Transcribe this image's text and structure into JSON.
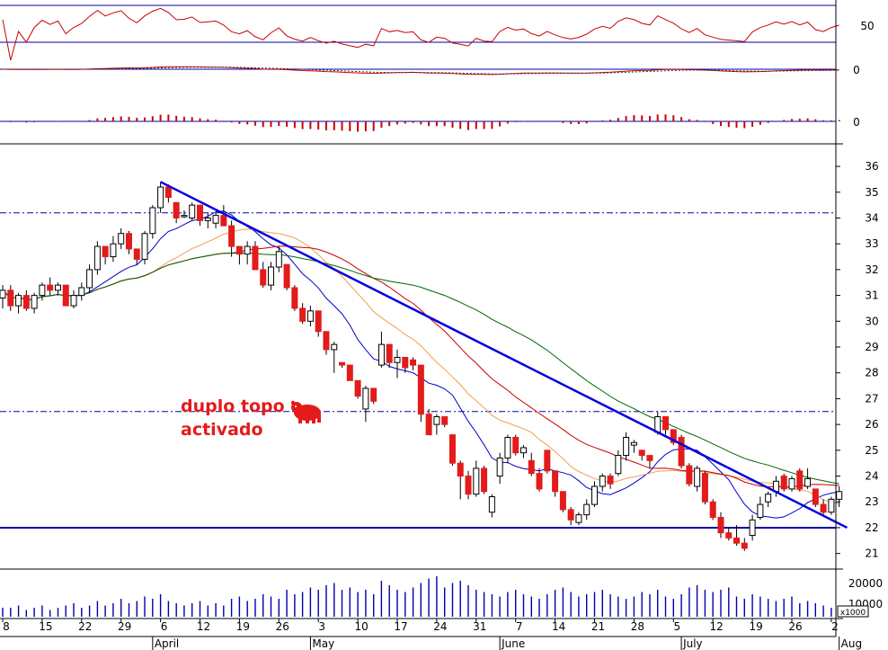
{
  "chart_data": {
    "type": "candlestick",
    "annotation": {
      "lines": [
        "duplo topo",
        "activado"
      ],
      "icon": "bear-icon"
    },
    "colors": {
      "up": "#ffffff",
      "down": "#e31b1b",
      "frame": "#0000aa",
      "annotation": "#e31b1b"
    },
    "price_axis": {
      "ticks": [
        "36",
        "35",
        "34",
        "33",
        "32",
        "31",
        "30",
        "29",
        "28",
        "27",
        "26",
        "25",
        "24",
        "23",
        "22",
        "21"
      ],
      "range": [
        20.5,
        36.7
      ]
    },
    "volume_axis": {
      "ticks": [
        "20000",
        "10000"
      ],
      "unit_label": "x1000"
    },
    "oscillator_axis": {
      "tick": "50"
    },
    "macd_axis": {
      "tick": "0"
    },
    "histogram_axis": {
      "tick": "0"
    },
    "x_axis": {
      "days": [
        "8",
        "15",
        "22",
        "29",
        "6",
        "12",
        "19",
        "26",
        "3",
        "10",
        "17",
        "24",
        "31",
        "7",
        "14",
        "21",
        "28",
        "5",
        "12",
        "19",
        "26",
        "2"
      ],
      "months": [
        "April",
        "May",
        "June",
        "July",
        "Aug"
      ],
      "day_positions": [
        0,
        5,
        10,
        15,
        20,
        25,
        30,
        35,
        40,
        45,
        50,
        55,
        60,
        65,
        70,
        75,
        80,
        85,
        90,
        95,
        100,
        105
      ],
      "month_positions": [
        19,
        39,
        63,
        86,
        106
      ]
    },
    "reference_levels": {
      "resistance_dashed": [
        34.2,
        26.5
      ],
      "support": 22.0
    },
    "trendline": {
      "from": [
        20,
        35.4
      ],
      "to": [
        107,
        22.0
      ]
    },
    "candles": [
      [
        30.9,
        31.4,
        30.5,
        31.2
      ],
      [
        31.2,
        31.4,
        30.4,
        30.6
      ],
      [
        30.6,
        31.1,
        30.3,
        31.0
      ],
      [
        31.0,
        31.2,
        30.4,
        30.5
      ],
      [
        30.5,
        31.1,
        30.3,
        31.0
      ],
      [
        31.0,
        31.5,
        30.8,
        31.4
      ],
      [
        31.4,
        31.7,
        31.0,
        31.2
      ],
      [
        31.2,
        31.5,
        31.0,
        31.4
      ],
      [
        31.4,
        31.4,
        30.6,
        30.6
      ],
      [
        30.6,
        31.2,
        30.5,
        31.0
      ],
      [
        31.0,
        31.5,
        30.8,
        31.3
      ],
      [
        31.3,
        32.2,
        31.1,
        32.0
      ],
      [
        32.0,
        33.1,
        31.8,
        32.9
      ],
      [
        32.9,
        32.9,
        32.2,
        32.5
      ],
      [
        32.5,
        33.3,
        32.3,
        33.0
      ],
      [
        33.0,
        33.6,
        32.8,
        33.4
      ],
      [
        33.4,
        33.5,
        32.6,
        32.8
      ],
      [
        32.8,
        32.8,
        32.2,
        32.4
      ],
      [
        32.4,
        33.5,
        32.2,
        33.4
      ],
      [
        33.4,
        34.5,
        33.2,
        34.4
      ],
      [
        34.4,
        35.4,
        34.2,
        35.2
      ],
      [
        35.2,
        35.3,
        34.6,
        34.8
      ],
      [
        34.6,
        34.6,
        33.8,
        34.0
      ],
      [
        34.1,
        34.3,
        34.0,
        34.1
      ],
      [
        34.0,
        34.6,
        33.9,
        34.5
      ],
      [
        34.5,
        34.5,
        33.7,
        33.9
      ],
      [
        33.9,
        34.2,
        33.6,
        34.0
      ],
      [
        33.8,
        34.2,
        33.6,
        34.1
      ],
      [
        34.1,
        34.5,
        33.7,
        33.7
      ],
      [
        33.7,
        33.9,
        32.5,
        32.9
      ],
      [
        32.9,
        32.9,
        32.2,
        32.6
      ],
      [
        32.6,
        33.1,
        32.2,
        32.9
      ],
      [
        32.9,
        33.1,
        32.0,
        32.0
      ],
      [
        32.0,
        32.3,
        31.3,
        31.4
      ],
      [
        31.4,
        32.3,
        31.2,
        32.1
      ],
      [
        32.1,
        32.9,
        31.9,
        32.7
      ],
      [
        32.2,
        32.2,
        31.2,
        31.3
      ],
      [
        31.3,
        31.4,
        30.4,
        30.5
      ],
      [
        30.5,
        30.7,
        29.9,
        30.0
      ],
      [
        30.0,
        30.6,
        29.8,
        30.4
      ],
      [
        30.4,
        30.4,
        29.4,
        29.6
      ],
      [
        29.6,
        29.6,
        28.7,
        28.9
      ],
      [
        28.9,
        29.2,
        28.0,
        29.1
      ],
      [
        28.4,
        28.4,
        28.2,
        28.3
      ],
      [
        28.3,
        28.3,
        27.7,
        27.7
      ],
      [
        27.7,
        27.7,
        27.0,
        27.1
      ],
      [
        26.6,
        27.5,
        26.1,
        27.4
      ],
      [
        27.4,
        27.4,
        26.8,
        26.9
      ],
      [
        28.3,
        29.6,
        28.2,
        29.1
      ],
      [
        29.1,
        29.1,
        28.2,
        28.4
      ],
      [
        28.4,
        28.9,
        27.8,
        28.6
      ],
      [
        28.6,
        28.6,
        28.0,
        28.2
      ],
      [
        28.5,
        28.6,
        28.1,
        28.3
      ],
      [
        28.3,
        28.3,
        26.1,
        26.4
      ],
      [
        26.4,
        26.6,
        25.6,
        25.6
      ],
      [
        26.0,
        26.4,
        25.6,
        26.3
      ],
      [
        26.3,
        26.3,
        25.9,
        26.0
      ],
      [
        25.6,
        25.6,
        24.4,
        24.5
      ],
      [
        24.5,
        24.6,
        23.1,
        24.0
      ],
      [
        24.0,
        24.2,
        23.1,
        23.3
      ],
      [
        23.3,
        24.6,
        23.2,
        24.3
      ],
      [
        24.3,
        24.4,
        23.3,
        23.4
      ],
      [
        22.6,
        23.3,
        22.4,
        23.2
      ],
      [
        24.0,
        24.9,
        23.7,
        24.7
      ],
      [
        24.7,
        25.6,
        24.5,
        25.5
      ],
      [
        25.5,
        25.6,
        24.8,
        24.9
      ],
      [
        24.9,
        25.2,
        24.7,
        25.1
      ],
      [
        24.6,
        24.9,
        24.0,
        24.1
      ],
      [
        24.1,
        24.3,
        23.4,
        23.5
      ],
      [
        25.0,
        25.0,
        24.1,
        24.2
      ],
      [
        24.2,
        24.2,
        23.2,
        23.4
      ],
      [
        23.4,
        23.4,
        22.6,
        22.7
      ],
      [
        22.7,
        22.8,
        22.1,
        22.3
      ],
      [
        22.2,
        22.6,
        22.1,
        22.5
      ],
      [
        22.5,
        23.1,
        22.3,
        22.9
      ],
      [
        22.9,
        23.8,
        22.8,
        23.6
      ],
      [
        23.6,
        24.1,
        23.4,
        24.0
      ],
      [
        24.0,
        24.1,
        23.5,
        23.7
      ],
      [
        24.1,
        25.0,
        24.0,
        24.8
      ],
      [
        24.8,
        25.7,
        24.6,
        25.5
      ],
      [
        25.2,
        25.4,
        24.9,
        25.3
      ],
      [
        25.0,
        25.0,
        24.6,
        24.8
      ],
      [
        24.8,
        24.8,
        24.3,
        24.6
      ],
      [
        25.7,
        26.5,
        25.6,
        26.3
      ],
      [
        26.3,
        26.3,
        25.6,
        25.8
      ],
      [
        25.8,
        25.8,
        25.2,
        25.3
      ],
      [
        25.5,
        25.6,
        24.3,
        24.4
      ],
      [
        24.4,
        24.5,
        23.6,
        23.7
      ],
      [
        23.6,
        24.4,
        23.4,
        24.3
      ],
      [
        24.1,
        24.2,
        22.9,
        23.0
      ],
      [
        23.0,
        23.1,
        22.3,
        22.4
      ],
      [
        22.4,
        22.6,
        21.6,
        21.8
      ],
      [
        21.8,
        22.0,
        21.5,
        21.6
      ],
      [
        21.6,
        22.1,
        21.3,
        21.4
      ],
      [
        21.4,
        21.6,
        21.1,
        21.2
      ],
      [
        21.7,
        22.5,
        21.5,
        22.3
      ],
      [
        22.4,
        23.2,
        22.3,
        22.9
      ],
      [
        23.0,
        23.4,
        22.8,
        23.3
      ],
      [
        23.4,
        24.0,
        23.2,
        23.8
      ],
      [
        24.0,
        24.1,
        23.4,
        23.5
      ],
      [
        23.5,
        24.0,
        23.4,
        23.9
      ],
      [
        24.2,
        24.3,
        23.4,
        23.5
      ],
      [
        23.6,
        24.3,
        23.5,
        23.9
      ],
      [
        23.5,
        23.5,
        22.8,
        22.9
      ],
      [
        22.9,
        23.1,
        22.5,
        22.6
      ],
      [
        22.6,
        23.2,
        22.5,
        23.1
      ],
      [
        23.1,
        23.6,
        22.8,
        23.4
      ]
    ],
    "volume": [
      4,
      4,
      5,
      3,
      4,
      5,
      3,
      4,
      5,
      6,
      4,
      5,
      7,
      5,
      6,
      8,
      6,
      7,
      9,
      8,
      10,
      7,
      6,
      5,
      6,
      7,
      5,
      6,
      5,
      8,
      9,
      7,
      8,
      10,
      9,
      8,
      12,
      10,
      11,
      13,
      12,
      14,
      15,
      12,
      13,
      11,
      12,
      10,
      16,
      14,
      12,
      11,
      13,
      15,
      17,
      18,
      13,
      15,
      16,
      14,
      12,
      11,
      10,
      9,
      11,
      12,
      10,
      9,
      8,
      10,
      12,
      13,
      11,
      9,
      10,
      11,
      12,
      10,
      9,
      8,
      9,
      11,
      10,
      12,
      9,
      8,
      10,
      13,
      14,
      12,
      11,
      12,
      13,
      9,
      8,
      10,
      9,
      8,
      7,
      8,
      9,
      6,
      7,
      6,
      5,
      4
    ]
  }
}
